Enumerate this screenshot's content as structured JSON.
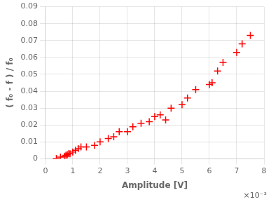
{
  "chart_data": {
    "type": "scatter",
    "x_label": "Amplitude [V]",
    "y_label": "( f₀ - f ) / f₀",
    "annotations": [
      "×10⁻³"
    ],
    "x": [
      0.0004,
      0.00055,
      0.0007,
      0.00075,
      0.0008,
      0.00085,
      0.0009,
      0.001,
      0.0011,
      0.0012,
      0.0013,
      0.0015,
      0.0018,
      0.002,
      0.0023,
      0.0025,
      0.0027,
      0.003,
      0.0032,
      0.0035,
      0.0038,
      0.004,
      0.0042,
      0.0044,
      0.0046,
      0.005,
      0.0052,
      0.0055,
      0.006,
      0.0061,
      0.0063,
      0.0065,
      0.007,
      0.0072,
      0.0075
    ],
    "values": [
      0.0002,
      0.001,
      0.0015,
      0.002,
      0.0025,
      0.003,
      0.003,
      0.004,
      0.005,
      0.006,
      0.007,
      0.007,
      0.008,
      0.01,
      0.012,
      0.013,
      0.016,
      0.016,
      0.019,
      0.021,
      0.022,
      0.025,
      0.026,
      0.023,
      0.03,
      0.032,
      0.036,
      0.041,
      0.044,
      0.045,
      0.052,
      0.057,
      0.063,
      0.068,
      0.073
    ],
    "color": "#FF0000",
    "marker": "plus",
    "xlim": [
      0,
      0.008
    ],
    "ylim": [
      0,
      0.09
    ],
    "xticks": [
      {
        "value": 0,
        "label": "0"
      },
      {
        "value": 0.001,
        "label": "1"
      },
      {
        "value": 0.002,
        "label": "2"
      },
      {
        "value": 0.003,
        "label": "3"
      },
      {
        "value": 0.004,
        "label": "4"
      },
      {
        "value": 0.005,
        "label": "5"
      },
      {
        "value": 0.006,
        "label": "6"
      },
      {
        "value": 0.007,
        "label": "7"
      },
      {
        "value": 0.008,
        "label": "8"
      }
    ],
    "yticks": [
      0,
      0.01,
      0.02,
      0.03,
      0.04,
      0.05,
      0.06,
      0.07,
      0.08,
      0.09
    ],
    "grid": true
  }
}
